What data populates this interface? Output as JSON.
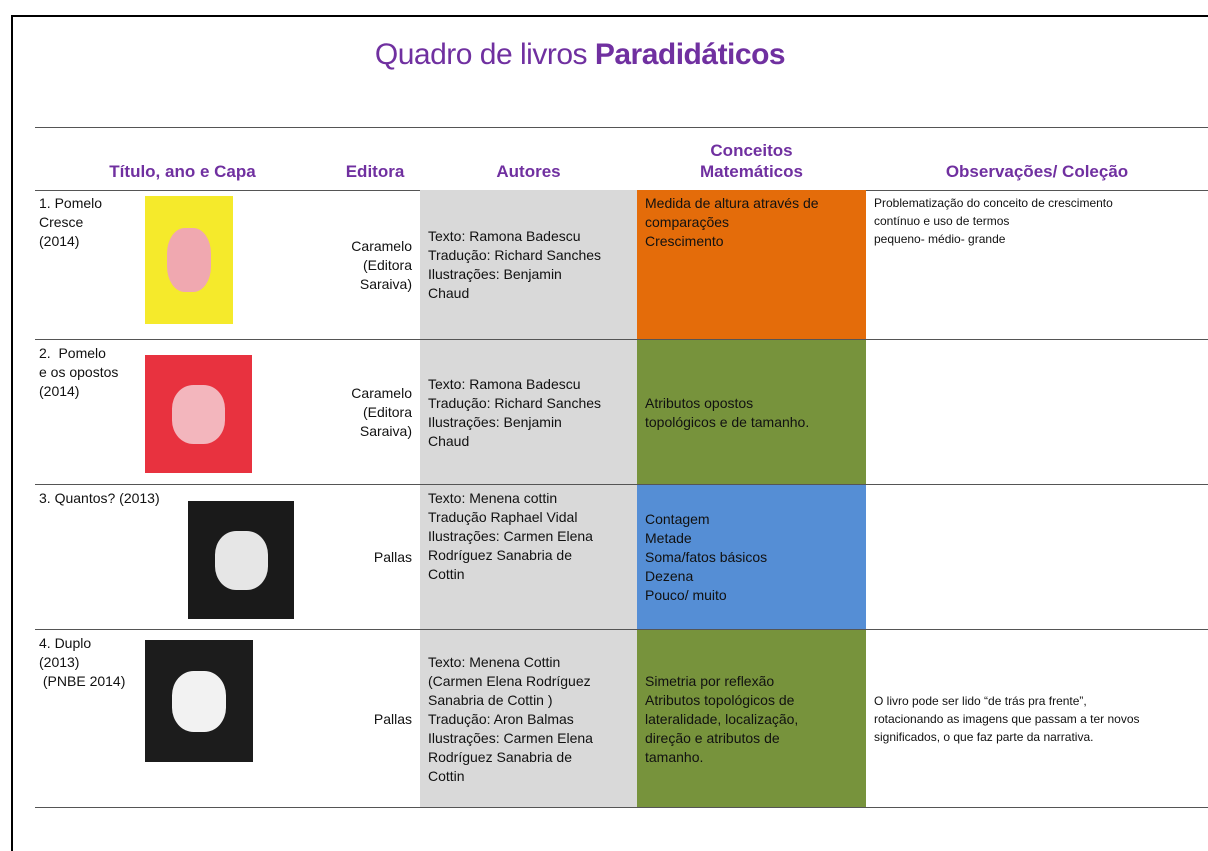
{
  "title": {
    "prefix": "Quadro de livros",
    "emphasis": "Paradidáticos"
  },
  "table": {
    "headers": [
      [
        "Título, ano e Capa"
      ],
      [
        "Editora"
      ],
      [
        "Autores"
      ],
      [
        "Conceitos",
        "Matemáticos"
      ],
      [
        "Observações/ Coleção"
      ]
    ],
    "rows": [
      {
        "title": [
          "1. Pomelo",
          "Cresce",
          "(2014)"
        ],
        "publisher": [
          "Caramelo",
          "(Editora",
          "Saraiva)"
        ],
        "authors": [
          "Texto: Ramona Badescu",
          "Tradução: Richard Sanches",
          "Ilustrações: Benjamin",
          "Chaud"
        ],
        "concepts": [
          "Medida de altura através de",
          "comparações",
          "Crescimento"
        ],
        "observations": [
          "Problematização do conceito de crescimento",
          "contínuo e uso de termos",
          "pequeno- médio- grande"
        ]
      },
      {
        "title": [
          "2.  Pomelo",
          "e os opostos",
          "(2014)"
        ],
        "publisher": [
          "Caramelo",
          "(Editora",
          "Saraiva)"
        ],
        "authors": [
          "Texto: Ramona Badescu",
          "Tradução: Richard Sanches",
          "Ilustrações: Benjamin",
          "Chaud"
        ],
        "concepts": [
          "Atributos opostos",
          "topológicos e de tamanho."
        ],
        "observations": []
      },
      {
        "title": [
          "3. Quantos? (2013)"
        ],
        "publisher": [
          "Pallas"
        ],
        "authors": [
          "Texto: Menena cottin",
          "Tradução Raphael Vidal",
          "Ilustrações: Carmen Elena",
          "Rodríguez Sanabria de",
          "Cottin"
        ],
        "concepts": [
          "Contagem",
          "Metade",
          "Soma/fatos básicos",
          "Dezena",
          "Pouco/ muito"
        ],
        "observations": []
      },
      {
        "title": [
          "4. Duplo",
          "(2013)",
          " (PNBE 2014)"
        ],
        "publisher": [
          "Pallas"
        ],
        "authors": [
          "Texto: Menena Cottin",
          "(Carmen Elena Rodríguez",
          "Sanabria de Cottin )",
          "Tradução: Aron Balmas",
          "Ilustrações: Carmen Elena",
          "Rodríguez Sanabria de",
          "Cottin"
        ],
        "concepts": [
          "Simetria por reflexão",
          "Atributos topológicos de",
          "lateralidade, localização,",
          "direção e atributos de",
          "tamanho."
        ],
        "observations": [
          "O livro pode ser lido “de trás pra frente”,",
          "rotacionando as imagens que passam a ter novos",
          "significados, o que faz parte da narrativa."
        ]
      }
    ]
  }
}
